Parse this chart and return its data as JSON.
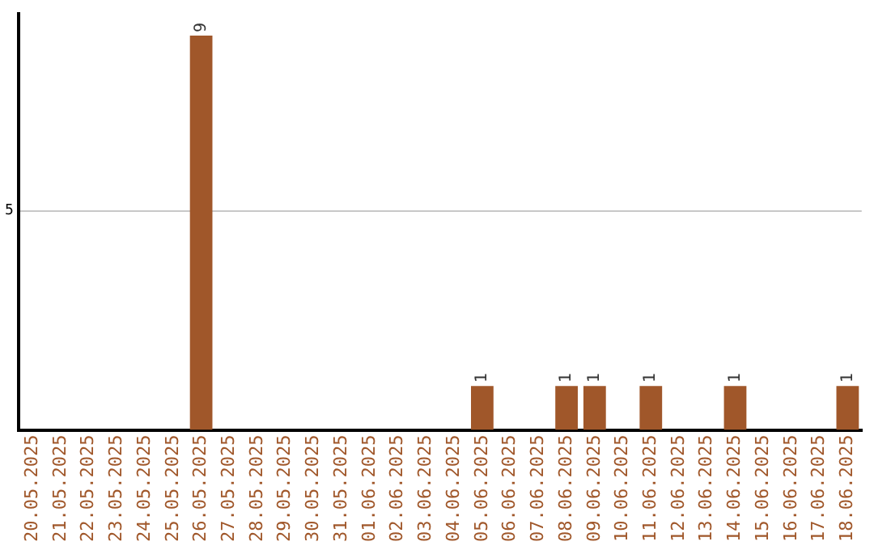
{
  "chart_data": {
    "type": "bar",
    "categories": [
      "20.05.2025",
      "21.05.2025",
      "22.05.2025",
      "23.05.2025",
      "24.05.2025",
      "25.05.2025",
      "26.05.2025",
      "27.05.2025",
      "28.05.2025",
      "29.05.2025",
      "30.05.2025",
      "31.05.2025",
      "01.06.2025",
      "02.06.2025",
      "03.06.2025",
      "04.06.2025",
      "05.06.2025",
      "06.06.2025",
      "07.06.2025",
      "08.06.2025",
      "09.06.2025",
      "10.06.2025",
      "11.06.2025",
      "12.06.2025",
      "13.06.2025",
      "14.06.2025",
      "15.06.2025",
      "16.06.2025",
      "17.06.2025",
      "18.06.2025"
    ],
    "values": [
      0,
      0,
      0,
      0,
      0,
      0,
      9,
      0,
      0,
      0,
      0,
      0,
      0,
      0,
      0,
      0,
      1,
      0,
      0,
      1,
      1,
      0,
      1,
      0,
      0,
      1,
      0,
      0,
      0,
      1
    ],
    "value_labels": [
      null,
      null,
      null,
      null,
      null,
      null,
      "9",
      null,
      null,
      null,
      null,
      null,
      null,
      null,
      null,
      null,
      "1",
      null,
      null,
      "1",
      "1",
      null,
      "1",
      null,
      null,
      "1",
      null,
      null,
      null,
      "1"
    ],
    "color": "#a0572a",
    "ylim": [
      0,
      9.5
    ],
    "yticks": [
      5
    ],
    "grid": "y"
  }
}
